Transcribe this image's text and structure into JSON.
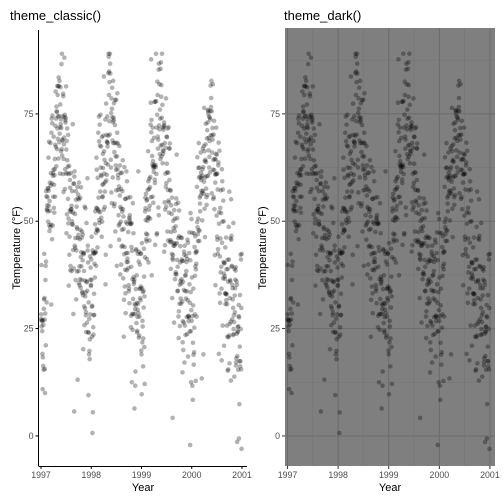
{
  "chart_data": [
    {
      "type": "scatter",
      "title": "theme_classic()",
      "theme": "classic",
      "xlabel": "Year",
      "ylabel": "Temperature (°F)",
      "xlim": [
        1996.95,
        2001.1
      ],
      "ylim": [
        -7,
        95
      ],
      "x_ticks": [
        1997,
        1998,
        1999,
        2000,
        2001
      ],
      "x_tick_labels": [
        "1997",
        "1998",
        "1999",
        "2000",
        "2001"
      ],
      "y_ticks": [
        0,
        25,
        50,
        75
      ],
      "y_tick_labels": [
        "0",
        "25",
        "50",
        "75"
      ],
      "grid": false,
      "point_color": "#000000",
      "point_opacity": 0.3,
      "background": "#ffffff",
      "series": [
        {
          "source": "daily-temperature"
        }
      ]
    },
    {
      "type": "scatter",
      "title": "theme_dark()",
      "theme": "dark",
      "xlabel": "Year",
      "ylabel": "Temperature (°F)",
      "xlim": [
        1996.95,
        2001.1
      ],
      "ylim": [
        -7,
        95
      ],
      "x_ticks": [
        1997,
        1998,
        1999,
        2000,
        2001
      ],
      "x_tick_labels": [
        "1997",
        "1998",
        "1999",
        "2000",
        "2001"
      ],
      "y_ticks": [
        0,
        25,
        50,
        75
      ],
      "y_tick_labels": [
        "0",
        "25",
        "50",
        "75"
      ],
      "grid": true,
      "point_color": "#000000",
      "point_opacity": 0.3,
      "background": "#7f7f7f",
      "grid_major_color": "#6b6b6b",
      "grid_minor_color": "#747474",
      "series": [
        {
          "source": "daily-temperature"
        }
      ]
    }
  ],
  "daily-temperature": {
    "x_start": 1997.0,
    "x_step": 0.004,
    "seasonal_anchors": [
      [
        0.0,
        30
      ],
      [
        0.03,
        20
      ],
      [
        0.06,
        34
      ],
      [
        0.1,
        47
      ],
      [
        0.13,
        52
      ],
      [
        0.2,
        62
      ],
      [
        0.27,
        65
      ],
      [
        0.33,
        70
      ],
      [
        0.38,
        76
      ],
      [
        0.42,
        68
      ],
      [
        0.5,
        60
      ],
      [
        0.55,
        52
      ],
      [
        0.62,
        44
      ],
      [
        0.7,
        40
      ],
      [
        0.8,
        36
      ],
      [
        0.88,
        30
      ],
      [
        0.95,
        28
      ],
      [
        1.0,
        30
      ]
    ],
    "trend_by_year": [
      [
        0.0,
        0
      ],
      [
        0.2,
        -2
      ],
      [
        0.4,
        2
      ],
      [
        0.6,
        6
      ],
      [
        0.8,
        8
      ],
      [
        1.0,
        2
      ],
      [
        1.2,
        0
      ],
      [
        1.4,
        4
      ],
      [
        1.6,
        5
      ],
      [
        1.8,
        3
      ],
      [
        2.0,
        4
      ],
      [
        2.2,
        -1
      ],
      [
        2.4,
        4
      ],
      [
        2.6,
        3
      ],
      [
        2.8,
        0
      ],
      [
        3.0,
        2
      ],
      [
        3.2,
        -4
      ],
      [
        3.4,
        0
      ],
      [
        3.6,
        -3
      ],
      [
        3.8,
        0
      ],
      [
        4.0,
        -6
      ]
    ],
    "n_points": 1000
  }
}
